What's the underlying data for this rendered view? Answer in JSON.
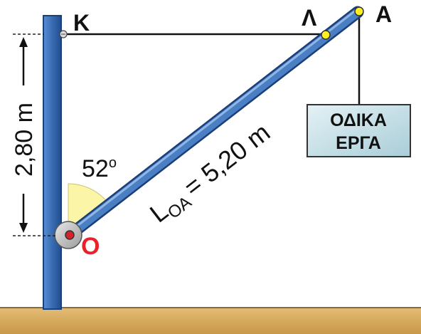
{
  "labels": {
    "point_k": "Κ",
    "point_lambda": "Λ",
    "point_a": "Α",
    "point_o": "Ο",
    "height": "2,80 m",
    "angle_value": "52",
    "angle_degree": "o",
    "length_main": "L",
    "length_sub": "ΟΑ",
    "length_value": "= 5,20 m"
  },
  "sign": {
    "line1": "ΟΔΙΚΑ",
    "line2": "ΕΡΓΑ"
  },
  "colors": {
    "pole": "#3b6fb6",
    "pole_edge": "#1b3f78",
    "beam": "#4a7fc4",
    "ground": "#d4a85e",
    "ground_edge": "#8a6a2a",
    "angle_fill": "#fbf5a8",
    "point_o_label": "#e8222a",
    "yellow_dot": "#ffee22",
    "sign_fill": "#c9e3ea"
  }
}
